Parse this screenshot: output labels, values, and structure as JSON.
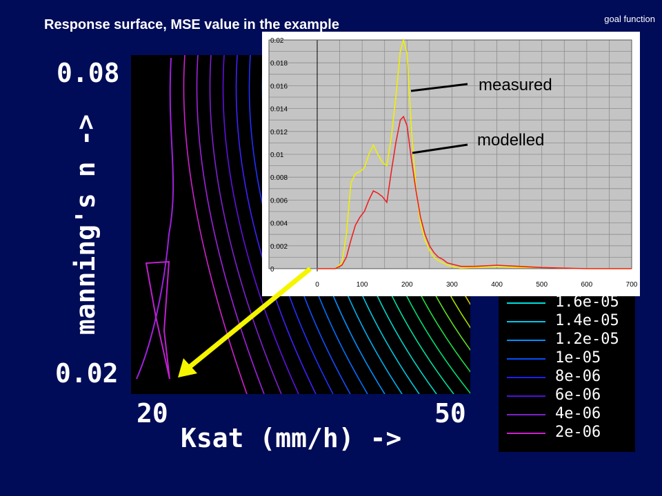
{
  "title": "Response surface, MSE value in the example",
  "corner_label": "goal function",
  "contour_plot": {
    "x_tick_left": "20",
    "x_tick_right": "50",
    "x_label": "Ksat (mm/h) ->",
    "y_tick_top": "0.08",
    "y_tick_bottom": "0.02",
    "y_label": "manning's n ->"
  },
  "legend": {
    "items": [
      {
        "label": "1.6e-05",
        "color": "#00e0e0"
      },
      {
        "label": "1.4e-05",
        "color": "#00c8f0"
      },
      {
        "label": "1.2e-05",
        "color": "#0090ff"
      },
      {
        "label": "1e-05",
        "color": "#0050ff"
      },
      {
        "label": "8e-06",
        "color": "#2020ff"
      },
      {
        "label": "6e-06",
        "color": "#5010e0"
      },
      {
        "label": "4e-06",
        "color": "#8020d0"
      },
      {
        "label": "2e-06",
        "color": "#d020d0"
      }
    ]
  },
  "annotations": {
    "measured": "measured",
    "modelled": "modelled"
  },
  "chart_data": {
    "type": "line",
    "xlim": [
      0,
      700
    ],
    "ylim": [
      0,
      0.02
    ],
    "x_ticks": [
      "0",
      "100",
      "200",
      "300",
      "400",
      "500",
      "600",
      "700"
    ],
    "y_ticks": [
      "0",
      "0.002",
      "0.004",
      "0.006",
      "0.008",
      "0.01",
      "0.012",
      "0.014",
      "0.016",
      "0.018",
      "0.02"
    ],
    "grid": true,
    "series": [
      {
        "name": "measured",
        "color": "#f0f000",
        "x": [
          0,
          40,
          55,
          65,
          75,
          85,
          95,
          105,
          115,
          125,
          135,
          145,
          155,
          165,
          175,
          185,
          192,
          200,
          210,
          220,
          230,
          240,
          250,
          260,
          270,
          280,
          290,
          300,
          310,
          320,
          350,
          400,
          450,
          500,
          600,
          700
        ],
        "y": [
          0,
          0,
          0.0005,
          0.003,
          0.0075,
          0.0083,
          0.0085,
          0.0088,
          0.01,
          0.0108,
          0.01,
          0.0093,
          0.009,
          0.0115,
          0.015,
          0.019,
          0.02,
          0.0188,
          0.012,
          0.007,
          0.004,
          0.0025,
          0.0016,
          0.001,
          0.0007,
          0.0005,
          0.0003,
          0.0002,
          0.0001,
          5e-05,
          0.0001,
          0.0002,
          0.0001,
          0.0001,
          0,
          0
        ]
      },
      {
        "name": "modelled",
        "color": "#ee2020",
        "x": [
          0,
          40,
          55,
          65,
          75,
          85,
          95,
          105,
          115,
          125,
          135,
          145,
          155,
          165,
          175,
          185,
          192,
          200,
          210,
          220,
          230,
          240,
          250,
          260,
          270,
          280,
          290,
          300,
          310,
          320,
          350,
          400,
          450,
          500,
          600,
          700
        ],
        "y": [
          0,
          0,
          0.0003,
          0.001,
          0.0025,
          0.0038,
          0.0045,
          0.005,
          0.006,
          0.0068,
          0.0066,
          0.0063,
          0.0058,
          0.0085,
          0.011,
          0.013,
          0.0133,
          0.0125,
          0.0095,
          0.0068,
          0.0045,
          0.003,
          0.002,
          0.0014,
          0.001,
          0.0008,
          0.0005,
          0.0004,
          0.0003,
          0.0002,
          0.0002,
          0.0003,
          0.0002,
          0.0001,
          0,
          0
        ]
      }
    ]
  }
}
